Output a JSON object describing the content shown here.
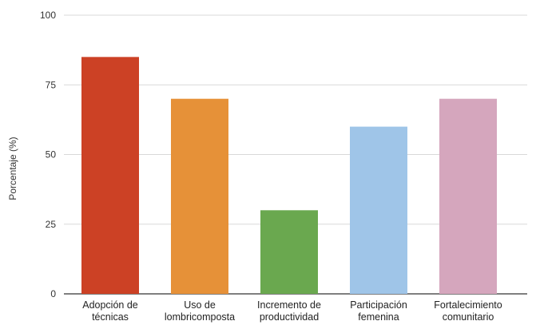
{
  "chart_data": {
    "type": "bar",
    "title": "",
    "xlabel": "",
    "ylabel": "Porcentaje (%)",
    "ylim": [
      0,
      100
    ],
    "yticks": [
      0,
      25,
      50,
      75,
      100
    ],
    "grid": true,
    "legend": "none",
    "categories": [
      [
        "Adopción de",
        "técnicas"
      ],
      [
        "Uso de",
        "lombricomposta"
      ],
      [
        "Incremento de",
        "productividad"
      ],
      [
        "Participación",
        "femenina"
      ],
      [
        "Fortalecimiento",
        "comunitario"
      ]
    ],
    "values": [
      85,
      70,
      30,
      60,
      70
    ],
    "colors": [
      "#cc4125",
      "#e69138",
      "#6aa84f",
      "#9fc5e8",
      "#d5a6bd"
    ]
  }
}
